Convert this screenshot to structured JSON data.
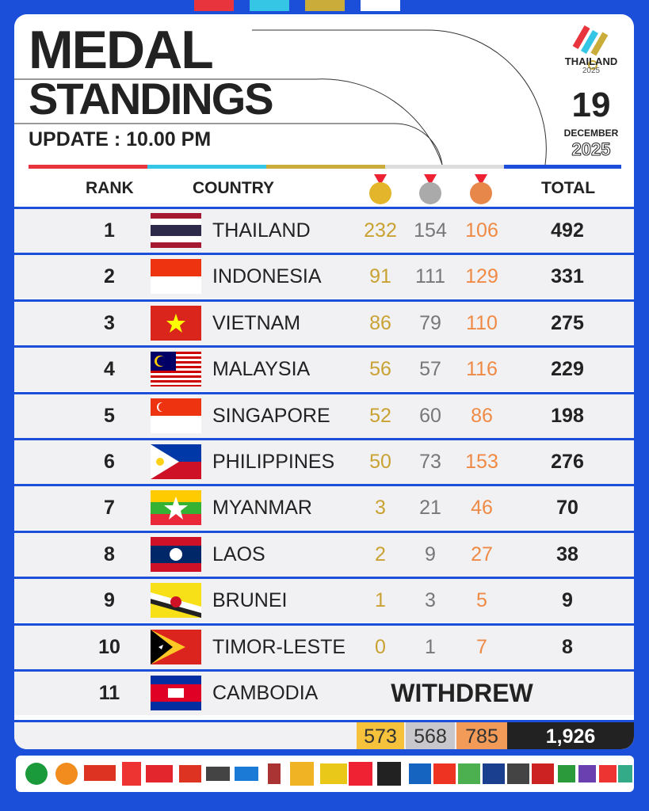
{
  "header": {
    "title_line1": "MEDAL",
    "title_line2": "STANDINGS",
    "update": "UPDATE : 10.00 PM",
    "logo_name": "THAILAND",
    "logo_year": "2025",
    "day": "19",
    "month": "DECEMBER",
    "year": "2025"
  },
  "table": {
    "columns": [
      "RANK",
      "COUNTRY",
      "TOTAL"
    ],
    "rows": [
      {
        "rank": 1,
        "country": "THAILAND",
        "gold": 232,
        "silver": 154,
        "bronze": 106,
        "total": 492
      },
      {
        "rank": 2,
        "country": "INDONESIA",
        "gold": 91,
        "silver": 111,
        "bronze": 129,
        "total": 331
      },
      {
        "rank": 3,
        "country": "VIETNAM",
        "gold": 86,
        "silver": 79,
        "bronze": 110,
        "total": 275
      },
      {
        "rank": 4,
        "country": "MALAYSIA",
        "gold": 56,
        "silver": 57,
        "bronze": 116,
        "total": 229
      },
      {
        "rank": 5,
        "country": "SINGAPORE",
        "gold": 52,
        "silver": 60,
        "bronze": 86,
        "total": 198
      },
      {
        "rank": 6,
        "country": "PHILIPPINES",
        "gold": 50,
        "silver": 73,
        "bronze": 153,
        "total": 276
      },
      {
        "rank": 7,
        "country": "MYANMAR",
        "gold": 3,
        "silver": 21,
        "bronze": 46,
        "total": 70
      },
      {
        "rank": 8,
        "country": "LAOS",
        "gold": 2,
        "silver": 9,
        "bronze": 27,
        "total": 38
      },
      {
        "rank": 9,
        "country": "BRUNEI",
        "gold": 1,
        "silver": 3,
        "bronze": 5,
        "total": 9
      },
      {
        "rank": 10,
        "country": "TIMOR-LESTE",
        "gold": 0,
        "silver": 1,
        "bronze": 7,
        "total": 8
      },
      {
        "rank": 11,
        "country": "CAMBODIA",
        "status": "WITHDREW"
      }
    ],
    "totals": {
      "gold": 573,
      "silver": 568,
      "bronze": 785,
      "total": "1,926"
    }
  }
}
